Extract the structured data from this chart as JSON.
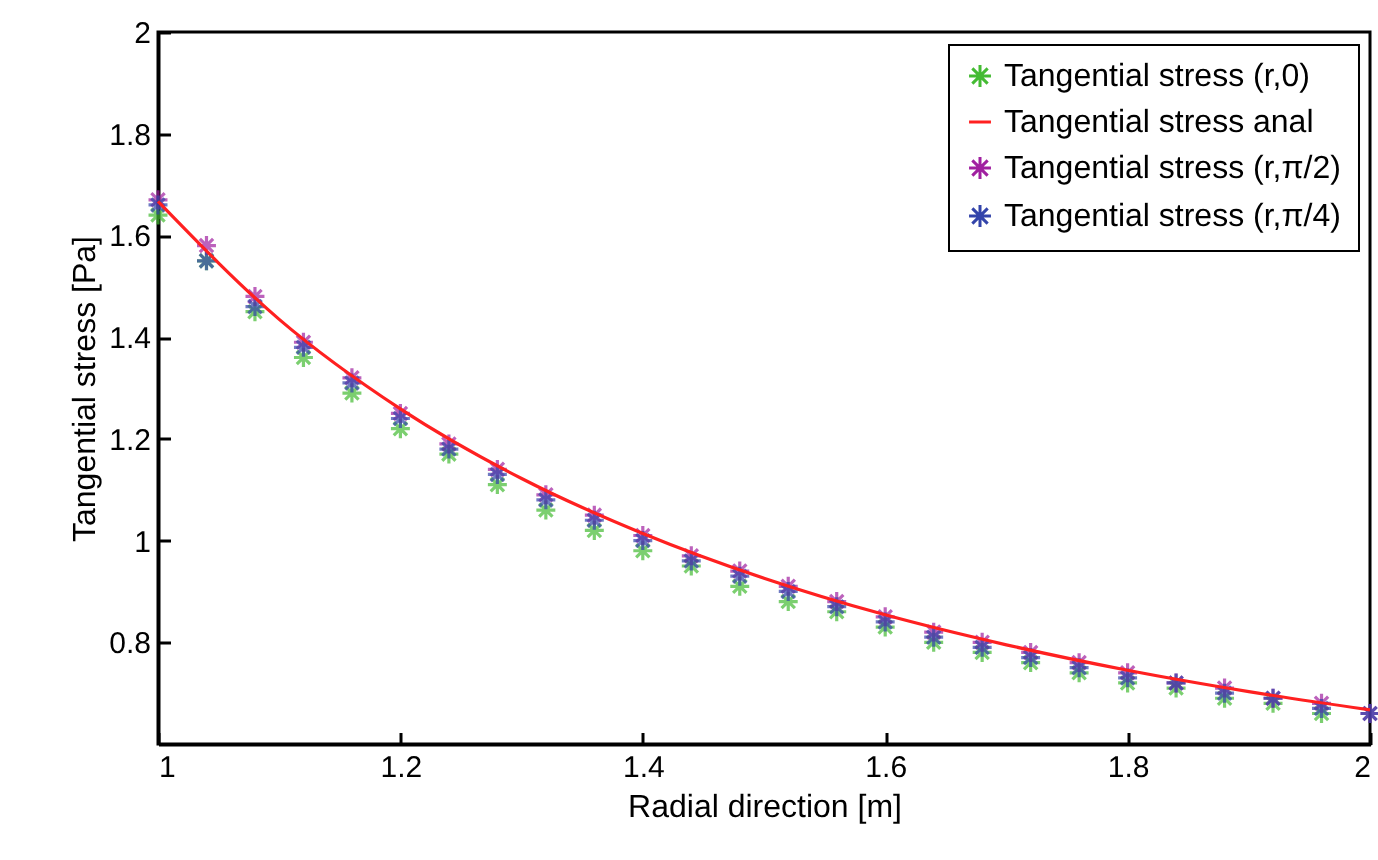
{
  "chart_data": {
    "type": "scatter",
    "xlabel": "Radial direction [m]",
    "ylabel": "Tangential stress [Pa]",
    "xlim": [
      1,
      2
    ],
    "xticks": [
      1,
      1.2,
      1.4,
      1.6,
      1.8,
      2
    ],
    "ylim": [
      0.6,
      2
    ],
    "yticks": [
      0.8,
      1,
      1.2,
      1.4,
      1.6,
      1.8,
      2
    ],
    "x": [
      1,
      1.04,
      1.08,
      1.12,
      1.16,
      1.2,
      1.24,
      1.28,
      1.32,
      1.36,
      1.4,
      1.44,
      1.48,
      1.52,
      1.56,
      1.6,
      1.64,
      1.68,
      1.72,
      1.76,
      1.8,
      1.84,
      1.88,
      1.92,
      1.96,
      2
    ],
    "grid": false,
    "legend": "top right",
    "marker": "cross",
    "series": [
      {
        "name": "Tangential stress (r,0)",
        "color": "#44bb33",
        "values": [
          1.64,
          1.55,
          1.45,
          1.36,
          1.29,
          1.22,
          1.17,
          1.11,
          1.06,
          1.02,
          0.98,
          0.95,
          0.91,
          0.88,
          0.86,
          0.83,
          0.8,
          0.78,
          0.76,
          0.74,
          0.72,
          0.71,
          0.69,
          0.68,
          0.66,
          null
        ]
      },
      {
        "name": "Tangential stress anal",
        "type": "line",
        "marker": "none",
        "color": "#ff2020",
        "line_style": "solid",
        "x": [
          1,
          1.1,
          1.2,
          1.3,
          1.4,
          1.5,
          1.6,
          1.7,
          1.8,
          1.9,
          2
        ],
        "values": [
          1.667,
          1.435,
          1.259,
          1.122,
          1.014,
          0.926,
          0.854,
          0.795,
          0.745,
          0.703,
          0.667
        ]
      },
      {
        "name": "Tangential stress (r,π/2)",
        "color": "#a020a0",
        "values": [
          1.67,
          1.58,
          1.48,
          1.39,
          1.32,
          1.25,
          1.19,
          1.14,
          1.09,
          1.05,
          1.01,
          0.97,
          0.94,
          0.91,
          0.88,
          0.85,
          0.82,
          0.8,
          0.78,
          0.76,
          0.74,
          0.72,
          0.71,
          0.69,
          0.68,
          0.66
        ]
      },
      {
        "name": "Tangential stress (r,π/4)",
        "color": "#3344aa",
        "values": [
          1.66,
          1.55,
          1.46,
          1.38,
          1.31,
          1.24,
          1.18,
          1.13,
          1.08,
          1.04,
          1.0,
          0.96,
          0.93,
          0.9,
          0.87,
          0.84,
          0.81,
          0.79,
          0.77,
          0.75,
          0.73,
          0.72,
          0.7,
          0.69,
          0.67,
          0.66
        ]
      }
    ]
  }
}
